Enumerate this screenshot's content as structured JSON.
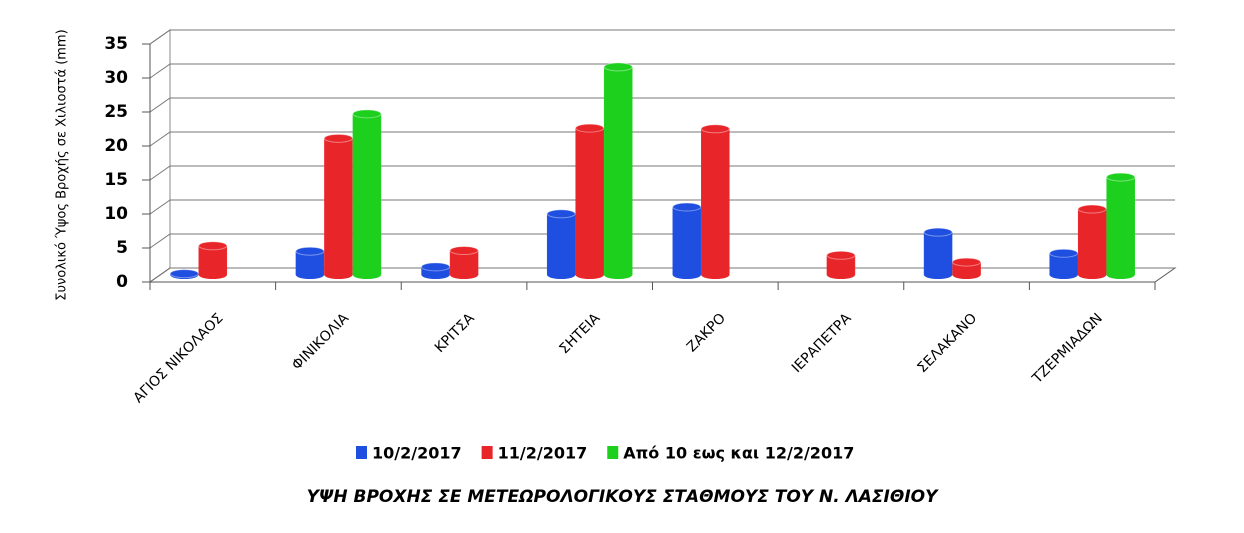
{
  "chart_data": {
    "type": "bar",
    "title": "ΥΨΗ ΒΡΟΧΗΣ ΣΕ ΜΕΤΕΩΡΟΛΟΓΙΚΟΥΣ ΣΤΑΘΜΟΥΣ ΤΟΥ Ν. ΛΑΣΙΘΙΟΥ",
    "y_label": "Συνολικό Ύψος Βροχής σε Χιλιοστά (mm)",
    "categories": [
      "ΑΓΙΟΣ ΝΙΚΟΛΑΟΣ",
      "ΦΙΝΙΚΟΛΙΑ",
      "ΚΡΙΤΣΑ",
      "ΣΗΤΕΙΑ",
      "ΖΑΚΡΟ",
      "ΙΕΡΑΠΕΤΡΑ",
      "ΣΕΛΑΚΑΝΟ",
      "ΤΖΕΡΜΙΑΔΩΝ"
    ],
    "series": [
      {
        "name": "10/2/2017",
        "color": "#1f4fe0",
        "values": [
          0.2,
          3.5,
          1.2,
          9,
          10,
          null,
          6.3,
          3.2
        ]
      },
      {
        "name": "11/2/2017",
        "color": "#e8262a",
        "values": [
          4.3,
          20.1,
          3.6,
          21.6,
          21.5,
          2.9,
          1.9,
          9.7
        ]
      },
      {
        "name": "Από 10 εως και 12/2/2017",
        "color": "#1ed01e",
        "values": [
          null,
          23.7,
          null,
          30.6,
          null,
          null,
          null,
          14.4
        ]
      }
    ],
    "ylim": [
      0,
      35
    ],
    "yticks": [
      0,
      5,
      10,
      15,
      20,
      25,
      30,
      35
    ],
    "grid": true,
    "legend": "bottom"
  }
}
